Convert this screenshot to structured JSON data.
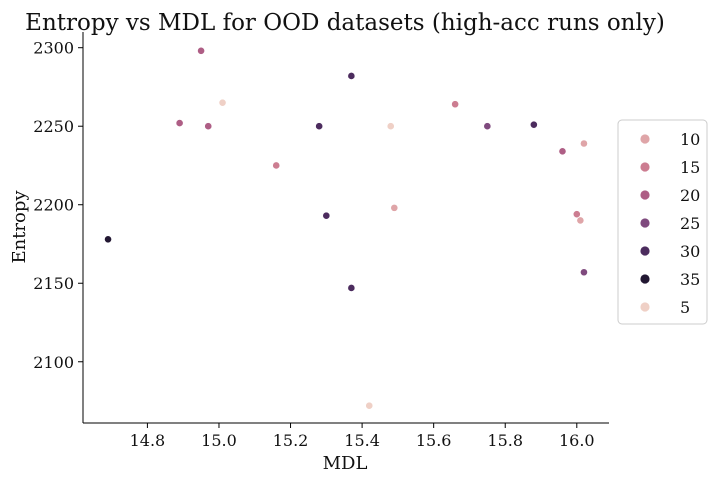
{
  "chart_data": {
    "type": "scatter",
    "title": "Entropy vs MDL for OOD datasets (high-acc runs only)",
    "xlabel": "MDL",
    "ylabel": "Entropy",
    "xlim": [
      14.62,
      16.09
    ],
    "ylim": [
      2061,
      2310
    ],
    "xticks": [
      14.8,
      15.0,
      15.2,
      15.4,
      15.6,
      15.8,
      16.0
    ],
    "yticks": [
      2100,
      2150,
      2200,
      2250,
      2300
    ],
    "xtick_labels": [
      "14.8",
      "15.0",
      "15.2",
      "15.4",
      "15.6",
      "15.8",
      "16.0"
    ],
    "ytick_labels": [
      "2100",
      "2150",
      "2200",
      "2250",
      "2300"
    ],
    "grid": false,
    "legend_position": "right",
    "legend": [
      {
        "label": "10",
        "color": "#dfa5a8"
      },
      {
        "label": "15",
        "color": "#cc7d91"
      },
      {
        "label": "20",
        "color": "#ae5e85"
      },
      {
        "label": "25",
        "color": "#7f4a7e"
      },
      {
        "label": "30",
        "color": "#4c2c5e"
      },
      {
        "label": "35",
        "color": "#221732"
      },
      {
        "label": "5",
        "color": "#efd0c6"
      }
    ],
    "points": [
      {
        "x": 14.69,
        "y": 2178,
        "group": "35"
      },
      {
        "x": 14.89,
        "y": 2252,
        "group": "20"
      },
      {
        "x": 14.95,
        "y": 2298,
        "group": "20"
      },
      {
        "x": 14.97,
        "y": 2250,
        "group": "20"
      },
      {
        "x": 15.01,
        "y": 2265,
        "group": "5"
      },
      {
        "x": 15.16,
        "y": 2225,
        "group": "15"
      },
      {
        "x": 15.28,
        "y": 2250,
        "group": "30"
      },
      {
        "x": 15.3,
        "y": 2193,
        "group": "30"
      },
      {
        "x": 15.37,
        "y": 2282,
        "group": "30"
      },
      {
        "x": 15.37,
        "y": 2147,
        "group": "30"
      },
      {
        "x": 15.42,
        "y": 2072,
        "group": "5"
      },
      {
        "x": 15.48,
        "y": 2250,
        "group": "5"
      },
      {
        "x": 15.49,
        "y": 2198,
        "group": "10"
      },
      {
        "x": 15.66,
        "y": 2264,
        "group": "15"
      },
      {
        "x": 15.75,
        "y": 2250,
        "group": "25"
      },
      {
        "x": 15.88,
        "y": 2251,
        "group": "30"
      },
      {
        "x": 15.96,
        "y": 2234,
        "group": "20"
      },
      {
        "x": 16.0,
        "y": 2194,
        "group": "15"
      },
      {
        "x": 16.01,
        "y": 2190,
        "group": "10"
      },
      {
        "x": 16.02,
        "y": 2239,
        "group": "10"
      },
      {
        "x": 16.02,
        "y": 2157,
        "group": "25"
      }
    ]
  }
}
